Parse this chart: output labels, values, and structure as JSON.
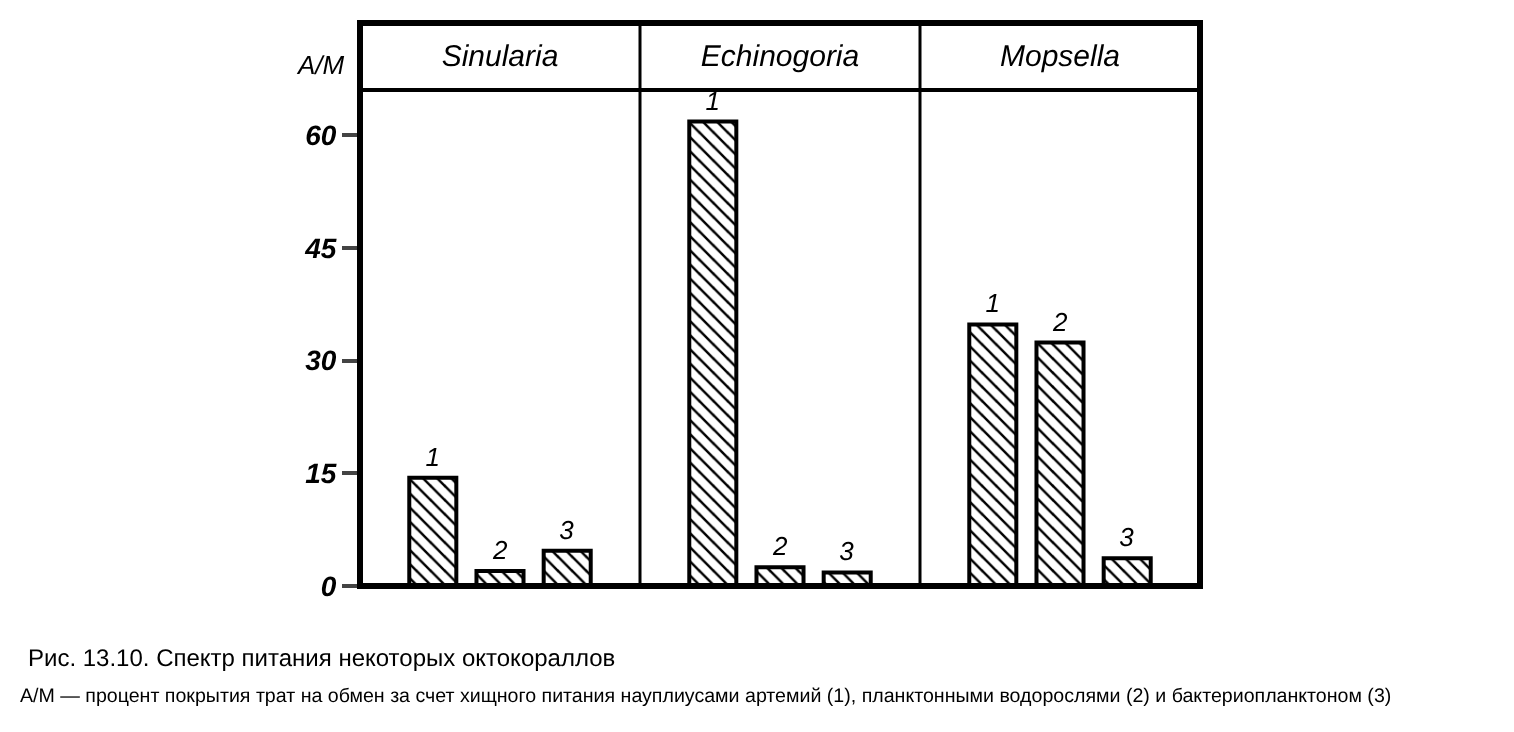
{
  "chart_data": {
    "type": "bar",
    "categories": [
      "Sinularia",
      "Echinogoria",
      "Mopsella"
    ],
    "ylabel": "A/M",
    "series": [
      {
        "name": "1",
        "color": "#000000",
        "values": [
          14.4,
          61.8,
          34.8
        ]
      },
      {
        "name": "2",
        "color": "#000000",
        "values": [
          2.0,
          2.5,
          32.4
        ]
      },
      {
        "name": "3",
        "color": "#000000",
        "values": [
          4.7,
          1.8,
          3.7
        ]
      }
    ],
    "ylim": [
      0,
      66
    ],
    "yticks": [
      0,
      15,
      30,
      45,
      60
    ],
    "grid": false,
    "legend": false,
    "annotations": [
      "Рис. 13.10. Спектр питания некоторых октокораллов",
      "A/M — процент покрытия трат на обмен за счет хищного питания науплиусами артемий (1), планктонными водорослями (2) и бактериопланктоном (3)"
    ]
  }
}
